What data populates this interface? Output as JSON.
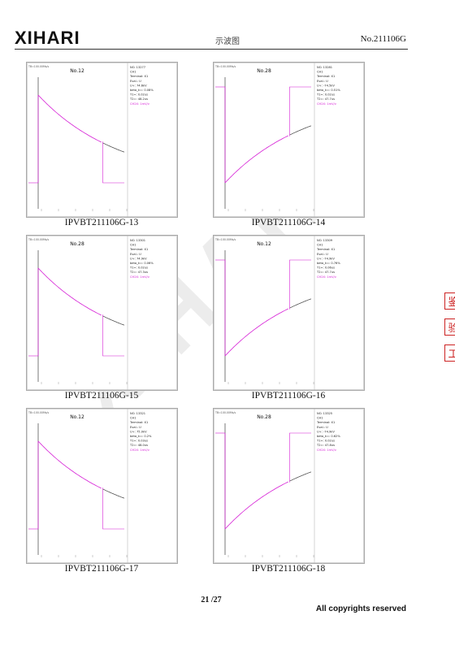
{
  "header": {
    "logo": "XIHARI",
    "center": "示波图",
    "doc_no": "No.211106G"
  },
  "panels": [
    {
      "chart_title": "No.12",
      "top_axis_label": "TB=100.00Ms/s",
      "info": [
        "NO. 13277",
        "CH1",
        "Terminal: X1",
        "Eval.: U",
        "U+: 74.6kV",
        "beta_k=: 0.08%",
        "T1=: 0.02us",
        "T2=: 48.2us",
        "CH2X: 1mV/v"
      ],
      "caption": "IPVBT211106G-13"
    },
    {
      "chart_title": "No.28",
      "top_axis_label": "TB=100.00Ms/s",
      "info": [
        "NO. 13281",
        "CH1",
        "Terminal: X1",
        "Eval.: U",
        "U+: -74.5kV",
        "beta_k=: 0.51%",
        "T1=: 0.02us",
        "T2=: 47.7us",
        "CH2X: 1mV/v"
      ],
      "caption": "IPVBT211106G-14"
    },
    {
      "chart_title": "No.28",
      "top_axis_label": "TB=100.00Ms/s",
      "info": [
        "NO. 13301",
        "CH1",
        "Terminal: X1",
        "Eval.: U",
        "U+: 74.9kV",
        "beta_k=: 0.06%",
        "T1=: 0.02us",
        "T2=: 47.3us",
        "CH2X: 1mV/v"
      ],
      "caption": "IPVBT211106G-15"
    },
    {
      "chart_title": "No.12",
      "top_axis_label": "TB=100.00Ms/s",
      "info": [
        "NO. 13309",
        "CH1",
        "Terminal: X1",
        "Eval.: U",
        "U+: -74.9kV",
        "beta_k=: 0.76%",
        "T1=: 0.06us",
        "T2=: 47.7us",
        "CH2X: 1mV/v"
      ],
      "caption": "IPVBT211106G-16"
    },
    {
      "chart_title": "No.12",
      "top_axis_label": "TB=100.00Ms/s",
      "info": [
        "NO. 13321",
        "CH1",
        "Terminal: X1",
        "Eval.: U",
        "U+: 75.0kV",
        "beta_k=: 0.2%",
        "T1=: 0.03us",
        "T2=: 48.0us",
        "CH2X: 1mV/v"
      ],
      "caption": "IPVBT211106G-17"
    },
    {
      "chart_title": "No.28",
      "top_axis_label": "TB=100.00Ms/s",
      "info": [
        "NO. 13325",
        "CH1",
        "Terminal: X1",
        "Eval.: U",
        "U+: -74.9kV",
        "beta_k=: 0.62%",
        "T1=: 0.02us",
        "T2=: 47.8us",
        "CH2X: 1mV/v"
      ],
      "caption": "IPVBT211106G-18"
    }
  ],
  "footer": {
    "page": "21 /27",
    "copyright": "All copyrights reserved"
  },
  "watermark": "XIHARI",
  "stamp_chars": [
    "鉴",
    "验",
    "工"
  ],
  "colors": {
    "trace_main": "#d61fd6",
    "trace_tail": "#444444",
    "axis": "#222222",
    "grid": "#cccccc"
  },
  "chart_data": [
    {
      "type": "line",
      "title": "No.12",
      "polarity": "positive",
      "series": [
        {
          "values": [
            0,
            1.0,
            0.86,
            0.74,
            0.63,
            0.54,
            0.47,
            0.41,
            0.36
          ]
        }
      ]
    },
    {
      "type": "line",
      "title": "No.28",
      "polarity": "negative",
      "series": [
        {
          "values": [
            0,
            -1.0,
            -0.86,
            -0.74,
            -0.64,
            -0.55,
            -0.48,
            -0.42,
            -0.37
          ]
        }
      ]
    },
    {
      "type": "line",
      "title": "No.28",
      "polarity": "positive",
      "series": [
        {
          "values": [
            0,
            1.0,
            0.86,
            0.74,
            0.63,
            0.54,
            0.47,
            0.41,
            0.36
          ]
        }
      ]
    },
    {
      "type": "line",
      "title": "No.12",
      "polarity": "negative",
      "series": [
        {
          "values": [
            0,
            -1.0,
            -0.86,
            -0.74,
            -0.64,
            -0.55,
            -0.48,
            -0.42,
            -0.37
          ]
        }
      ]
    },
    {
      "type": "line",
      "title": "No.12",
      "polarity": "positive",
      "series": [
        {
          "values": [
            0,
            1.0,
            0.86,
            0.74,
            0.63,
            0.54,
            0.47,
            0.41,
            0.36
          ]
        }
      ]
    },
    {
      "type": "line",
      "title": "No.28",
      "polarity": "negative",
      "series": [
        {
          "values": [
            0,
            -1.0,
            -0.86,
            -0.74,
            -0.64,
            -0.55,
            -0.48,
            -0.42,
            -0.37
          ]
        }
      ]
    }
  ]
}
